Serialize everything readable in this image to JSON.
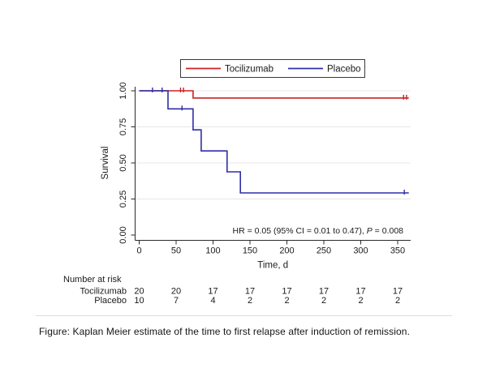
{
  "chart_data": {
    "type": "line",
    "subtype": "kaplan-meier-step",
    "title": "",
    "xlabel": "Time, d",
    "ylabel": "Survival",
    "xlim": [
      0,
      365
    ],
    "ylim": [
      0,
      1
    ],
    "xticks": [
      "0",
      "50",
      "100",
      "150",
      "200",
      "250",
      "300",
      "350"
    ],
    "yticks": [
      "0.00",
      "0.25",
      "0.50",
      "0.75",
      "1.00"
    ],
    "grid": "horizontal",
    "legend_position": "top-center",
    "series": [
      {
        "name": "Tocilizumab",
        "color": "#cc2222",
        "steps": [
          [
            0,
            1.0
          ],
          [
            73,
            1.0
          ],
          [
            73,
            0.95
          ],
          [
            365,
            0.95
          ]
        ],
        "censor_marks": [
          [
            56,
            1.0
          ],
          [
            60,
            1.0
          ],
          [
            358,
            0.95
          ],
          [
            362,
            0.95
          ]
        ]
      },
      {
        "name": "Placebo",
        "color": "#2f2fa8",
        "steps": [
          [
            0,
            1.0
          ],
          [
            39,
            1.0
          ],
          [
            39,
            0.875
          ],
          [
            73,
            0.875
          ],
          [
            73,
            0.729
          ],
          [
            84,
            0.729
          ],
          [
            84,
            0.583
          ],
          [
            119,
            0.583
          ],
          [
            119,
            0.438
          ],
          [
            137,
            0.438
          ],
          [
            137,
            0.292
          ],
          [
            365,
            0.292
          ]
        ],
        "censor_marks": [
          [
            18,
            1.0
          ],
          [
            31,
            1.0
          ],
          [
            58,
            0.875
          ],
          [
            359,
            0.292
          ]
        ]
      }
    ],
    "annotation": {
      "prefix": "HR = 0.05 (95% CI = 0.01 to 0.47), ",
      "italic": "P",
      "suffix": " = 0.008"
    },
    "risk_table": {
      "header": "Number at risk",
      "times": [
        "0",
        "50",
        "100",
        "150",
        "200",
        "250",
        "300",
        "350"
      ],
      "rows": [
        {
          "label": "Tocilizumab",
          "counts": [
            "20",
            "20",
            "17",
            "17",
            "17",
            "17",
            "17",
            "17"
          ]
        },
        {
          "label": "Placebo",
          "counts": [
            "10",
            "7",
            "4",
            "2",
            "2",
            "2",
            "2",
            "2"
          ]
        }
      ]
    }
  },
  "caption": "Figure: Kaplan Meier estimate of the time to first relapse after induction of remission."
}
